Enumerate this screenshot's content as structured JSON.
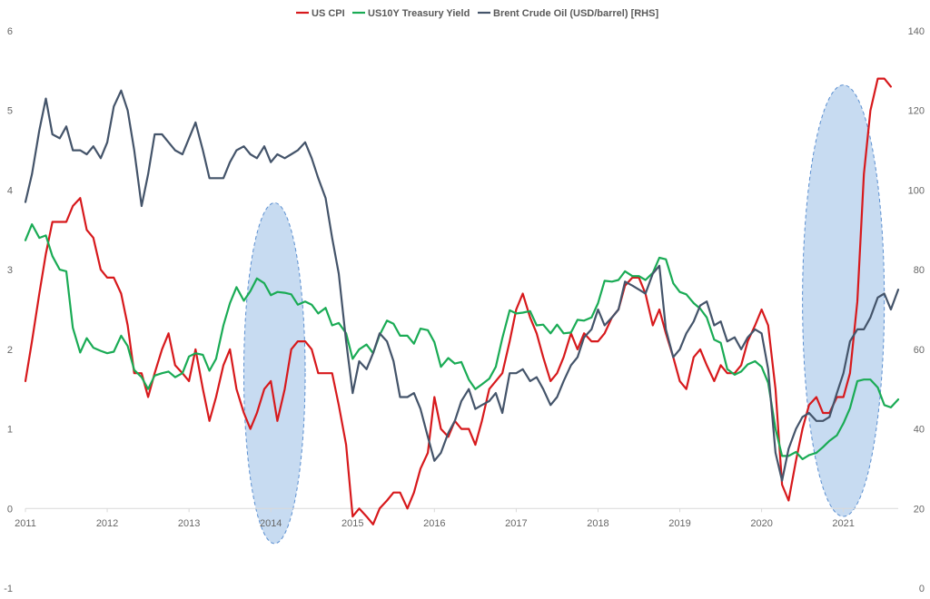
{
  "chart_data": {
    "type": "line",
    "legend_position": "top",
    "grid": false,
    "x_unit": "date (year fraction)",
    "x_tick_labels": [
      "2011",
      "2012",
      "2013",
      "2014",
      "2015",
      "2016",
      "2017",
      "2018",
      "2019",
      "2020",
      "2021"
    ],
    "left_axis": {
      "ylim": [
        -1,
        6
      ],
      "tick_labels": [
        "-1",
        "0",
        "1",
        "2",
        "3",
        "4",
        "5",
        "6"
      ]
    },
    "right_axis": {
      "ylim": [
        0,
        140
      ],
      "tick_labels": [
        "0",
        "20",
        "40",
        "60",
        "80",
        "100",
        "120",
        "140"
      ]
    },
    "series": [
      {
        "name": "US CPI",
        "axis": "left",
        "color": "#d7191c",
        "x": [
          2011.0,
          2011.08,
          2011.17,
          2011.25,
          2011.33,
          2011.42,
          2011.5,
          2011.58,
          2011.67,
          2011.75,
          2011.83,
          2011.92,
          2012.0,
          2012.08,
          2012.17,
          2012.25,
          2012.33,
          2012.42,
          2012.5,
          2012.58,
          2012.67,
          2012.75,
          2012.83,
          2012.92,
          2013.0,
          2013.08,
          2013.17,
          2013.25,
          2013.33,
          2013.42,
          2013.5,
          2013.58,
          2013.67,
          2013.75,
          2013.83,
          2013.92,
          2014.0,
          2014.08,
          2014.17,
          2014.25,
          2014.33,
          2014.42,
          2014.5,
          2014.58,
          2014.67,
          2014.75,
          2014.83,
          2014.92,
          2015.0,
          2015.08,
          2015.17,
          2015.25,
          2015.33,
          2015.42,
          2015.5,
          2015.58,
          2015.67,
          2015.75,
          2015.83,
          2015.92,
          2016.0,
          2016.08,
          2016.17,
          2016.25,
          2016.33,
          2016.42,
          2016.5,
          2016.58,
          2016.67,
          2016.75,
          2016.83,
          2016.92,
          2017.0,
          2017.08,
          2017.17,
          2017.25,
          2017.33,
          2017.42,
          2017.5,
          2017.58,
          2017.67,
          2017.75,
          2017.83,
          2017.92,
          2018.0,
          2018.08,
          2018.17,
          2018.25,
          2018.33,
          2018.42,
          2018.5,
          2018.58,
          2018.67,
          2018.75,
          2018.83,
          2018.92,
          2019.0,
          2019.08,
          2019.17,
          2019.25,
          2019.33,
          2019.42,
          2019.5,
          2019.58,
          2019.67,
          2019.75,
          2019.83,
          2019.92,
          2020.0,
          2020.08,
          2020.17,
          2020.25,
          2020.33,
          2020.42,
          2020.5,
          2020.58,
          2020.67,
          2020.75,
          2020.83,
          2020.92,
          2021.0,
          2021.08,
          2021.17,
          2021.25,
          2021.33,
          2021.42,
          2021.5,
          2021.58
        ],
        "values": [
          1.6,
          2.1,
          2.7,
          3.2,
          3.6,
          3.6,
          3.6,
          3.8,
          3.9,
          3.5,
          3.4,
          3.0,
          2.9,
          2.9,
          2.7,
          2.3,
          1.7,
          1.7,
          1.4,
          1.7,
          2.0,
          2.2,
          1.8,
          1.7,
          1.6,
          2.0,
          1.5,
          1.1,
          1.4,
          1.8,
          2.0,
          1.5,
          1.2,
          1.0,
          1.2,
          1.5,
          1.6,
          1.1,
          1.5,
          2.0,
          2.1,
          2.1,
          2.0,
          1.7,
          1.7,
          1.7,
          1.3,
          0.8,
          -0.1,
          0.0,
          -0.1,
          -0.2,
          0.0,
          0.1,
          0.2,
          0.2,
          0.0,
          0.2,
          0.5,
          0.7,
          1.4,
          1.0,
          0.9,
          1.1,
          1.0,
          1.0,
          0.8,
          1.1,
          1.5,
          1.6,
          1.7,
          2.1,
          2.5,
          2.7,
          2.4,
          2.2,
          1.9,
          1.6,
          1.7,
          1.9,
          2.2,
          2.0,
          2.2,
          2.1,
          2.1,
          2.2,
          2.4,
          2.5,
          2.8,
          2.9,
          2.9,
          2.7,
          2.3,
          2.5,
          2.2,
          1.9,
          1.6,
          1.5,
          1.9,
          2.0,
          1.8,
          1.6,
          1.8,
          1.7,
          1.7,
          1.8,
          2.1,
          2.3,
          2.5,
          2.3,
          1.5,
          0.3,
          0.1,
          0.6,
          1.0,
          1.3,
          1.4,
          1.2,
          1.2,
          1.4,
          1.4,
          1.7,
          2.6,
          4.2,
          5.0,
          5.4,
          5.4,
          5.3
        ]
      },
      {
        "name": "US10Y Treasury Yield",
        "axis": "left",
        "color": "#1aab55",
        "x": [
          2011.0,
          2011.08,
          2011.17,
          2011.25,
          2011.33,
          2011.42,
          2011.5,
          2011.58,
          2011.67,
          2011.75,
          2011.83,
          2011.92,
          2012.0,
          2012.08,
          2012.17,
          2012.25,
          2012.33,
          2012.42,
          2012.5,
          2012.58,
          2012.67,
          2012.75,
          2012.83,
          2012.92,
          2013.0,
          2013.08,
          2013.17,
          2013.25,
          2013.33,
          2013.42,
          2013.5,
          2013.58,
          2013.67,
          2013.75,
          2013.83,
          2013.92,
          2014.0,
          2014.08,
          2014.17,
          2014.25,
          2014.33,
          2014.42,
          2014.5,
          2014.58,
          2014.67,
          2014.75,
          2014.83,
          2014.92,
          2015.0,
          2015.08,
          2015.17,
          2015.25,
          2015.33,
          2015.42,
          2015.5,
          2015.58,
          2015.67,
          2015.75,
          2015.83,
          2015.92,
          2016.0,
          2016.08,
          2016.17,
          2016.25,
          2016.33,
          2016.42,
          2016.5,
          2016.58,
          2016.67,
          2016.75,
          2016.83,
          2016.92,
          2017.0,
          2017.08,
          2017.17,
          2017.25,
          2017.33,
          2017.42,
          2017.5,
          2017.58,
          2017.67,
          2017.75,
          2017.83,
          2017.92,
          2018.0,
          2018.08,
          2018.17,
          2018.25,
          2018.33,
          2018.42,
          2018.5,
          2018.58,
          2018.67,
          2018.75,
          2018.83,
          2018.92,
          2019.0,
          2019.08,
          2019.17,
          2019.25,
          2019.33,
          2019.42,
          2019.5,
          2019.58,
          2019.67,
          2019.75,
          2019.83,
          2019.92,
          2020.0,
          2020.08,
          2020.17,
          2020.25,
          2020.33,
          2020.42,
          2020.5,
          2020.58,
          2020.67,
          2020.75,
          2020.83,
          2020.92,
          2021.0,
          2021.08,
          2021.17,
          2021.25,
          2021.33,
          2021.42,
          2021.5,
          2021.58,
          2021.67
        ],
        "values": [
          3.37,
          3.57,
          3.4,
          3.43,
          3.17,
          3.0,
          2.98,
          2.27,
          1.96,
          2.14,
          2.02,
          1.98,
          1.95,
          1.97,
          2.17,
          2.04,
          1.74,
          1.65,
          1.5,
          1.67,
          1.7,
          1.72,
          1.65,
          1.7,
          1.91,
          1.95,
          1.93,
          1.73,
          1.88,
          2.3,
          2.58,
          2.78,
          2.61,
          2.73,
          2.89,
          2.83,
          2.68,
          2.72,
          2.71,
          2.69,
          2.56,
          2.6,
          2.56,
          2.45,
          2.52,
          2.3,
          2.33,
          2.2,
          1.88,
          2.0,
          2.06,
          1.95,
          2.18,
          2.36,
          2.32,
          2.17,
          2.17,
          2.07,
          2.26,
          2.24,
          2.09,
          1.78,
          1.89,
          1.82,
          1.84,
          1.62,
          1.5,
          1.56,
          1.63,
          1.78,
          2.14,
          2.49,
          2.45,
          2.46,
          2.48,
          2.3,
          2.31,
          2.2,
          2.31,
          2.2,
          2.21,
          2.37,
          2.36,
          2.4,
          2.58,
          2.86,
          2.85,
          2.87,
          2.98,
          2.92,
          2.92,
          2.87,
          2.96,
          3.15,
          3.13,
          2.83,
          2.72,
          2.69,
          2.58,
          2.51,
          2.4,
          2.12,
          2.08,
          1.75,
          1.68,
          1.72,
          1.81,
          1.85,
          1.78,
          1.58,
          1.0,
          0.66,
          0.66,
          0.71,
          0.62,
          0.67,
          0.7,
          0.77,
          0.85,
          0.92,
          1.07,
          1.26,
          1.6,
          1.62,
          1.62,
          1.52,
          1.3,
          1.27,
          1.37
        ]
      },
      {
        "name": "Brent Crude Oil (USD/barrel) [RHS]",
        "axis": "right",
        "color": "#44546a",
        "x": [
          2011.0,
          2011.08,
          2011.17,
          2011.25,
          2011.33,
          2011.42,
          2011.5,
          2011.58,
          2011.67,
          2011.75,
          2011.83,
          2011.92,
          2012.0,
          2012.08,
          2012.17,
          2012.25,
          2012.33,
          2012.42,
          2012.5,
          2012.58,
          2012.67,
          2012.75,
          2012.83,
          2012.92,
          2013.0,
          2013.08,
          2013.17,
          2013.25,
          2013.33,
          2013.42,
          2013.5,
          2013.58,
          2013.67,
          2013.75,
          2013.83,
          2013.92,
          2014.0,
          2014.08,
          2014.17,
          2014.25,
          2014.33,
          2014.42,
          2014.5,
          2014.58,
          2014.67,
          2014.75,
          2014.83,
          2014.92,
          2015.0,
          2015.08,
          2015.17,
          2015.25,
          2015.33,
          2015.42,
          2015.5,
          2015.58,
          2015.67,
          2015.75,
          2015.83,
          2015.92,
          2016.0,
          2016.08,
          2016.17,
          2016.25,
          2016.33,
          2016.42,
          2016.5,
          2016.58,
          2016.67,
          2016.75,
          2016.83,
          2016.92,
          2017.0,
          2017.08,
          2017.17,
          2017.25,
          2017.33,
          2017.42,
          2017.5,
          2017.58,
          2017.67,
          2017.75,
          2017.83,
          2017.92,
          2018.0,
          2018.08,
          2018.17,
          2018.25,
          2018.33,
          2018.42,
          2018.5,
          2018.58,
          2018.67,
          2018.75,
          2018.83,
          2018.92,
          2019.0,
          2019.08,
          2019.17,
          2019.25,
          2019.33,
          2019.42,
          2019.5,
          2019.58,
          2019.67,
          2019.75,
          2019.83,
          2019.92,
          2020.0,
          2020.08,
          2020.17,
          2020.25,
          2020.33,
          2020.42,
          2020.5,
          2020.58,
          2020.67,
          2020.75,
          2020.83,
          2020.92,
          2021.0,
          2021.08,
          2021.17,
          2021.25,
          2021.33,
          2021.42,
          2021.5,
          2021.58,
          2021.67
        ],
        "values": [
          97,
          104,
          115,
          123,
          114,
          113,
          116,
          110,
          110,
          109,
          111,
          108,
          112,
          121,
          125,
          120,
          110,
          96,
          104,
          114,
          114,
          112,
          110,
          109,
          113,
          117,
          110,
          103,
          103,
          103,
          107,
          110,
          111,
          109,
          108,
          111,
          107,
          109,
          108,
          109,
          110,
          112,
          108,
          103,
          98,
          88,
          79,
          62,
          49,
          57,
          55,
          59,
          64,
          62,
          57,
          48,
          48,
          49,
          45,
          38,
          32,
          34,
          39,
          42,
          47,
          50,
          45,
          46,
          47,
          49,
          44,
          54,
          54,
          55,
          52,
          53,
          50,
          46,
          48,
          52,
          56,
          58,
          63,
          65,
          70,
          66,
          68,
          70,
          77,
          76,
          75,
          74,
          79,
          81,
          65,
          58,
          60,
          64,
          67,
          71,
          72,
          66,
          67,
          62,
          63,
          60,
          63,
          65,
          64,
          55,
          34,
          27,
          35,
          40,
          43,
          44,
          42,
          42,
          43,
          49,
          54,
          62,
          65,
          65,
          68,
          73,
          74,
          70,
          75
        ]
      }
    ],
    "highlight_regions": [
      {
        "x_range": [
          2013.67,
          2014.42
        ],
        "y_range": [
          -0.44,
          3.84
        ]
      },
      {
        "x_range": [
          2020.5,
          2021.5
        ],
        "y_range": [
          -0.1,
          5.32
        ]
      }
    ]
  }
}
